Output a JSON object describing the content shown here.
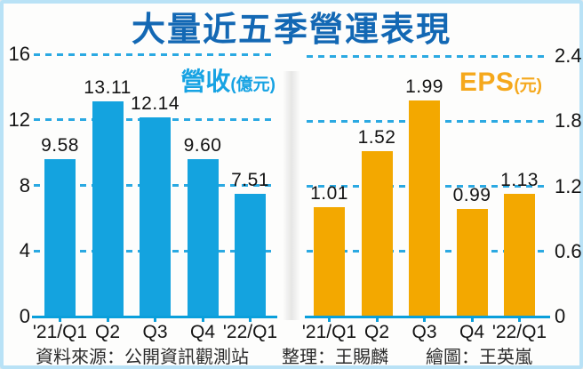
{
  "title": "大量近五季營運表現",
  "colors": {
    "title_blue": "#1368b4",
    "bar_blue": "#14a3df",
    "bar_orange": "#f3a800",
    "grid_blue": "#2ba9e2",
    "axis_blue": "#0a9fdb",
    "frame_light_blue": "#b9e2f6",
    "legend_blue": "#17a3e3",
    "legend_orange": "#f5a81c"
  },
  "footer": {
    "source": "資料來源：公開資訊觀測站",
    "compiler": "整理：王賜麟",
    "illustrator": "繪圖：王英嵐"
  },
  "chart_data": [
    {
      "type": "bar",
      "title": "營收",
      "unit": "(億元)",
      "categories": [
        "'21/Q1",
        "Q2",
        "Q3",
        "Q4",
        "'22/Q1"
      ],
      "values": [
        9.58,
        13.11,
        12.14,
        9.6,
        7.51
      ],
      "value_labels": [
        "9.58",
        "13.11",
        "12.14",
        "9.60",
        "7.51"
      ],
      "ylim": [
        0,
        16
      ],
      "yticks": [
        0,
        4,
        8,
        12,
        16
      ],
      "ytick_labels": [
        "0",
        "4",
        "8",
        "12",
        "16"
      ],
      "ytick_side": "left",
      "grid": true,
      "bar_color": "#14a3df",
      "legend_position": "top-right"
    },
    {
      "type": "bar",
      "title": "EPS",
      "unit": "(元)",
      "categories": [
        "'21/Q1",
        "Q2",
        "Q3",
        "Q4",
        "'22/Q1"
      ],
      "values": [
        1.01,
        1.52,
        1.99,
        0.99,
        1.13
      ],
      "value_labels": [
        "1.01",
        "1.52",
        "1.99",
        "0.99",
        "1.13"
      ],
      "ylim": [
        0,
        2.4
      ],
      "yticks": [
        0,
        0.6,
        1.2,
        1.8,
        2.4
      ],
      "ytick_labels": [
        "0",
        "0.6",
        "1.2",
        "1.8",
        "2.4"
      ],
      "ytick_side": "right",
      "grid": true,
      "bar_color": "#f3a800",
      "legend_position": "top-right"
    }
  ]
}
